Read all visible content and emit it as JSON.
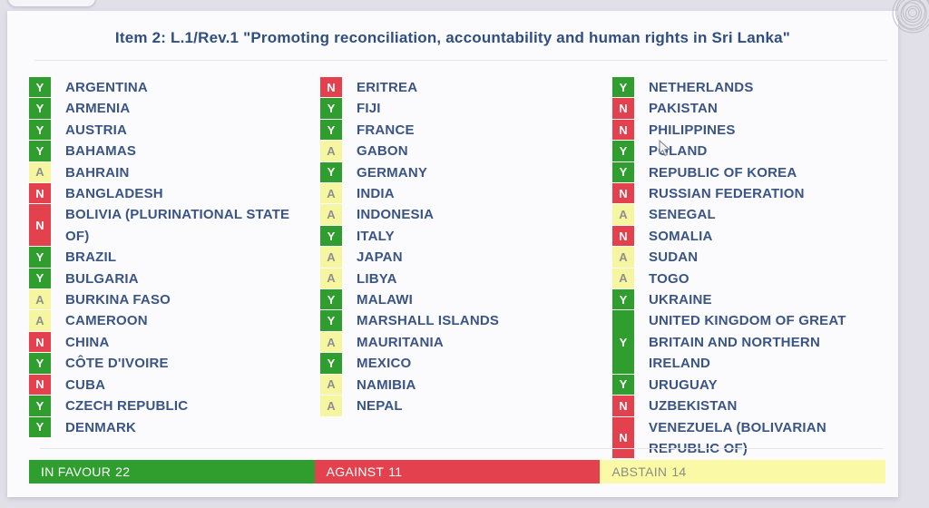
{
  "title": "Item 2: L.1/Rev.1 \"Promoting reconciliation, accountability and human rights in Sri Lanka\"",
  "votes": {
    "columns": [
      [
        {
          "vote": "Y",
          "country": "ARGENTINA"
        },
        {
          "vote": "Y",
          "country": "ARMENIA"
        },
        {
          "vote": "Y",
          "country": "AUSTRIA"
        },
        {
          "vote": "Y",
          "country": "BAHAMAS"
        },
        {
          "vote": "A",
          "country": "BAHRAIN"
        },
        {
          "vote": "N",
          "country": "BANGLADESH"
        },
        {
          "vote": "N",
          "country": "BOLIVIA (PLURINATIONAL STATE\nOF)"
        },
        {
          "vote": "Y",
          "country": "BRAZIL"
        },
        {
          "vote": "Y",
          "country": "BULGARIA"
        },
        {
          "vote": "A",
          "country": "BURKINA FASO"
        },
        {
          "vote": "A",
          "country": "CAMEROON"
        },
        {
          "vote": "N",
          "country": "CHINA"
        },
        {
          "vote": "Y",
          "country": "CÔTE D'IVOIRE"
        },
        {
          "vote": "N",
          "country": "CUBA"
        },
        {
          "vote": "Y",
          "country": "CZECH REPUBLIC"
        },
        {
          "vote": "Y",
          "country": "DENMARK"
        }
      ],
      [
        {
          "vote": "N",
          "country": "ERITREA"
        },
        {
          "vote": "Y",
          "country": "FIJI"
        },
        {
          "vote": "Y",
          "country": "FRANCE"
        },
        {
          "vote": "A",
          "country": "GABON"
        },
        {
          "vote": "Y",
          "country": "GERMANY"
        },
        {
          "vote": "A",
          "country": "INDIA"
        },
        {
          "vote": "A",
          "country": "INDONESIA"
        },
        {
          "vote": "Y",
          "country": "ITALY"
        },
        {
          "vote": "A",
          "country": "JAPAN"
        },
        {
          "vote": "A",
          "country": "LIBYA"
        },
        {
          "vote": "Y",
          "country": "MALAWI"
        },
        {
          "vote": "Y",
          "country": "MARSHALL ISLANDS"
        },
        {
          "vote": "A",
          "country": "MAURITANIA"
        },
        {
          "vote": "Y",
          "country": "MEXICO"
        },
        {
          "vote": "A",
          "country": "NAMIBIA"
        },
        {
          "vote": "A",
          "country": "NEPAL"
        }
      ],
      [
        {
          "vote": "Y",
          "country": "NETHERLANDS"
        },
        {
          "vote": "N",
          "country": "PAKISTAN"
        },
        {
          "vote": "N",
          "country": "PHILIPPINES"
        },
        {
          "vote": "Y",
          "country": "POLAND"
        },
        {
          "vote": "Y",
          "country": "REPUBLIC OF KOREA"
        },
        {
          "vote": "N",
          "country": "RUSSIAN FEDERATION"
        },
        {
          "vote": "A",
          "country": "SENEGAL"
        },
        {
          "vote": "N",
          "country": "SOMALIA"
        },
        {
          "vote": "A",
          "country": "SUDAN"
        },
        {
          "vote": "A",
          "country": "TOGO"
        },
        {
          "vote": "Y",
          "country": "UKRAINE"
        },
        {
          "vote": "Y",
          "country": "UNITED KINGDOM OF GREAT\nBRITAIN AND NORTHERN IRELAND"
        },
        {
          "vote": "Y",
          "country": "URUGUAY"
        },
        {
          "vote": "N",
          "country": "UZBEKISTAN"
        },
        {
          "vote": "N",
          "country": "VENEZUELA (BOLIVARIAN\nREPUBLIC OF)"
        }
      ]
    ]
  },
  "summary": [
    {
      "label": "IN FAVOUR",
      "count": "22",
      "key": "yes"
    },
    {
      "label": "AGAINST",
      "count": "11",
      "key": "no"
    },
    {
      "label": "ABSTAIN",
      "count": "14",
      "key": "abstain"
    }
  ],
  "colors": {
    "yes": "#2f9e2f",
    "no": "#e4414f",
    "abstain": "#f6f6a1",
    "abstain_bar": "#fafaa6",
    "abstain_letter": "#8f8f8f",
    "abstain_bar_text": "#8c8c80",
    "country_text": "#3a5584",
    "title_text": "#2f4f80",
    "panel_bg": "#fbfafc",
    "page_bg": "#e1e0e9",
    "divider": "#e6e5ec"
  }
}
